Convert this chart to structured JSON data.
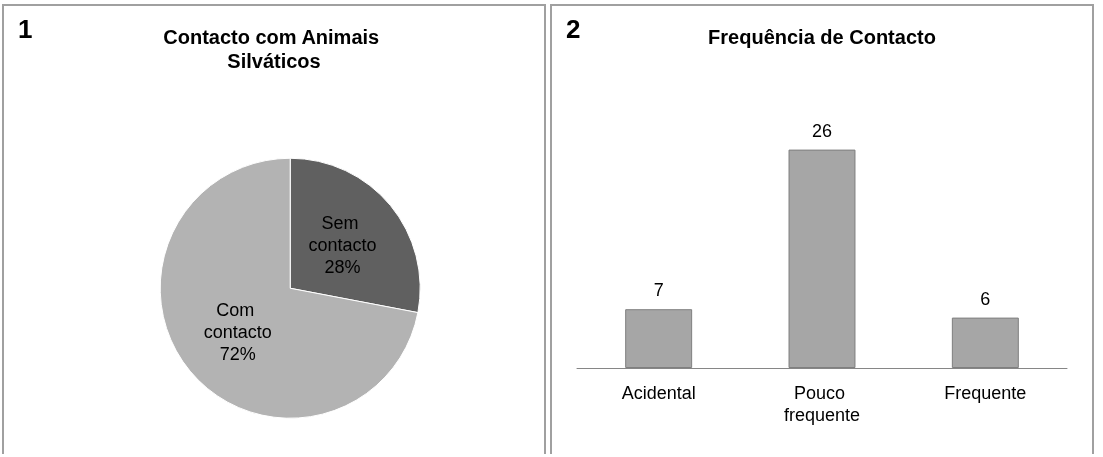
{
  "chart_data": [
    {
      "type": "pie",
      "title": "Contacto com Animais Silváticos",
      "annotations": [
        "1"
      ],
      "categories": [
        "Sem contacto",
        "Com contacto"
      ],
      "values": [
        28,
        72
      ],
      "value_labels": [
        "28%",
        "72%"
      ],
      "colors": [
        "#606060",
        "#b3b3b3"
      ]
    },
    {
      "type": "bar",
      "title": "Frequência de Contacto",
      "annotations": [
        "2"
      ],
      "categories": [
        "Acidental",
        "Pouco frequente",
        "Frequente"
      ],
      "values": [
        7,
        26,
        6
      ],
      "color": "#a6a6a6",
      "data_labels": true
    }
  ]
}
